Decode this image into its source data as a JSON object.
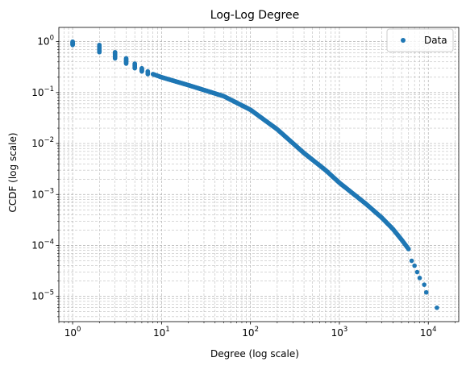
{
  "chart_data": {
    "type": "scatter",
    "title": "Log-Log Degree",
    "xlabel": "Degree (log scale)",
    "ylabel": "CCDF (log scale)",
    "x_scale": "log",
    "y_scale": "log",
    "xlim": [
      0.7,
      22000
    ],
    "ylim": [
      3.2e-06,
      1.9
    ],
    "x_ticks": [
      {
        "base": "10",
        "exp": "0",
        "value": 1
      },
      {
        "base": "10",
        "exp": "1",
        "value": 10
      },
      {
        "base": "10",
        "exp": "2",
        "value": 100
      },
      {
        "base": "10",
        "exp": "3",
        "value": 1000
      },
      {
        "base": "10",
        "exp": "4",
        "value": 10000
      }
    ],
    "y_ticks": [
      {
        "base": "10",
        "exp": "0",
        "value": 1
      },
      {
        "base": "10",
        "exp": "−1",
        "value": 0.1
      },
      {
        "base": "10",
        "exp": "−2",
        "value": 0.01
      },
      {
        "base": "10",
        "exp": "−3",
        "value": 0.001
      },
      {
        "base": "10",
        "exp": "−4",
        "value": 0.0001
      },
      {
        "base": "10",
        "exp": "−5",
        "value": 1e-05
      }
    ],
    "grid": true,
    "grid_style": "dashed",
    "legend_position": "top-right",
    "series": [
      {
        "name": "Data",
        "color": "#1f77b4",
        "marker": "circle",
        "vertical_clusters": [
          {
            "x": 1,
            "y_min": 0.86,
            "y_max": 1.0
          },
          {
            "x": 2,
            "y_min": 0.62,
            "y_max": 0.86
          },
          {
            "x": 3,
            "y_min": 0.47,
            "y_max": 0.62
          },
          {
            "x": 4,
            "y_min": 0.37,
            "y_max": 0.47
          },
          {
            "x": 5,
            "y_min": 0.3,
            "y_max": 0.37
          },
          {
            "x": 6,
            "y_min": 0.26,
            "y_max": 0.3
          },
          {
            "x": 7,
            "y_min": 0.23,
            "y_max": 0.26
          }
        ],
        "curve": [
          [
            8,
            0.23
          ],
          [
            10,
            0.2
          ],
          [
            20,
            0.14
          ],
          [
            50,
            0.085
          ],
          [
            100,
            0.046
          ],
          [
            200,
            0.019
          ],
          [
            400,
            0.0065
          ],
          [
            700,
            0.003
          ],
          [
            1000,
            0.0017
          ],
          [
            2000,
            0.00065
          ],
          [
            3000,
            0.00035
          ],
          [
            4000,
            0.00021
          ],
          [
            5000,
            0.00013
          ],
          [
            6000,
            8.5e-05
          ]
        ],
        "tail_points": [
          [
            6500,
            5e-05
          ],
          [
            7000,
            4e-05
          ],
          [
            7500,
            3e-05
          ],
          [
            8000,
            2.3e-05
          ],
          [
            9000,
            1.7e-05
          ],
          [
            9500,
            1.2e-05
          ],
          [
            12500,
            6e-06
          ]
        ]
      }
    ]
  }
}
